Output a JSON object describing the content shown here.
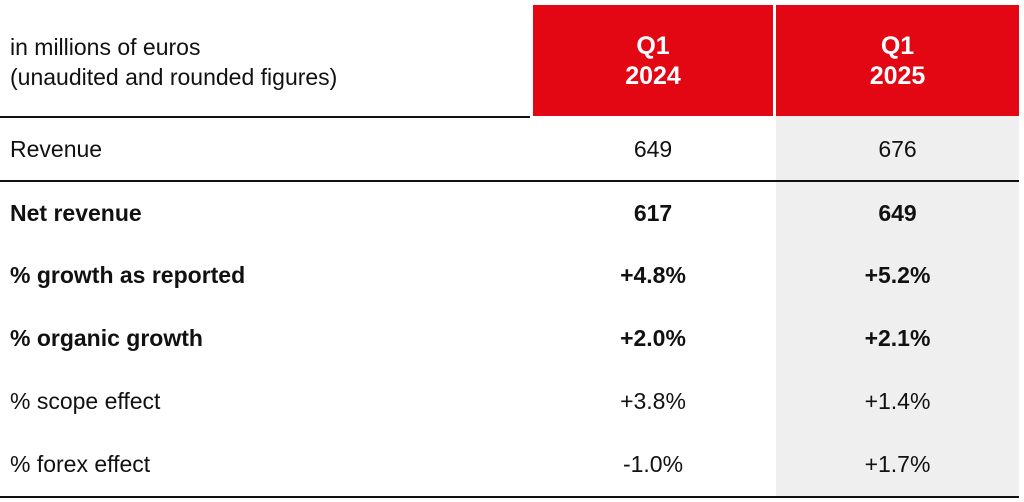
{
  "header": {
    "caption_line1": "in millions of euros",
    "caption_line2": "(unaudited and rounded figures)",
    "col1_line1": "Q1",
    "col1_line2": "2024",
    "col2_line1": "Q1",
    "col2_line2": "2025"
  },
  "colors": {
    "accent": "#e30613",
    "highlight_column": "#efefef"
  },
  "rows": [
    {
      "label": "Revenue",
      "q1_2024": "649",
      "q1_2025": "676"
    },
    {
      "label": "Net revenue",
      "q1_2024": "617",
      "q1_2025": "649"
    },
    {
      "label": "% growth as reported",
      "q1_2024": "+4.8%",
      "q1_2025": "+5.2%"
    },
    {
      "label": "% organic growth",
      "q1_2024": "+2.0%",
      "q1_2025": "+2.1%"
    },
    {
      "label": "% scope effect",
      "q1_2024": "+3.8%",
      "q1_2025": "+1.4%"
    },
    {
      "label": "% forex effect",
      "q1_2024": "-1.0%",
      "q1_2025": "+1.7%"
    }
  ]
}
